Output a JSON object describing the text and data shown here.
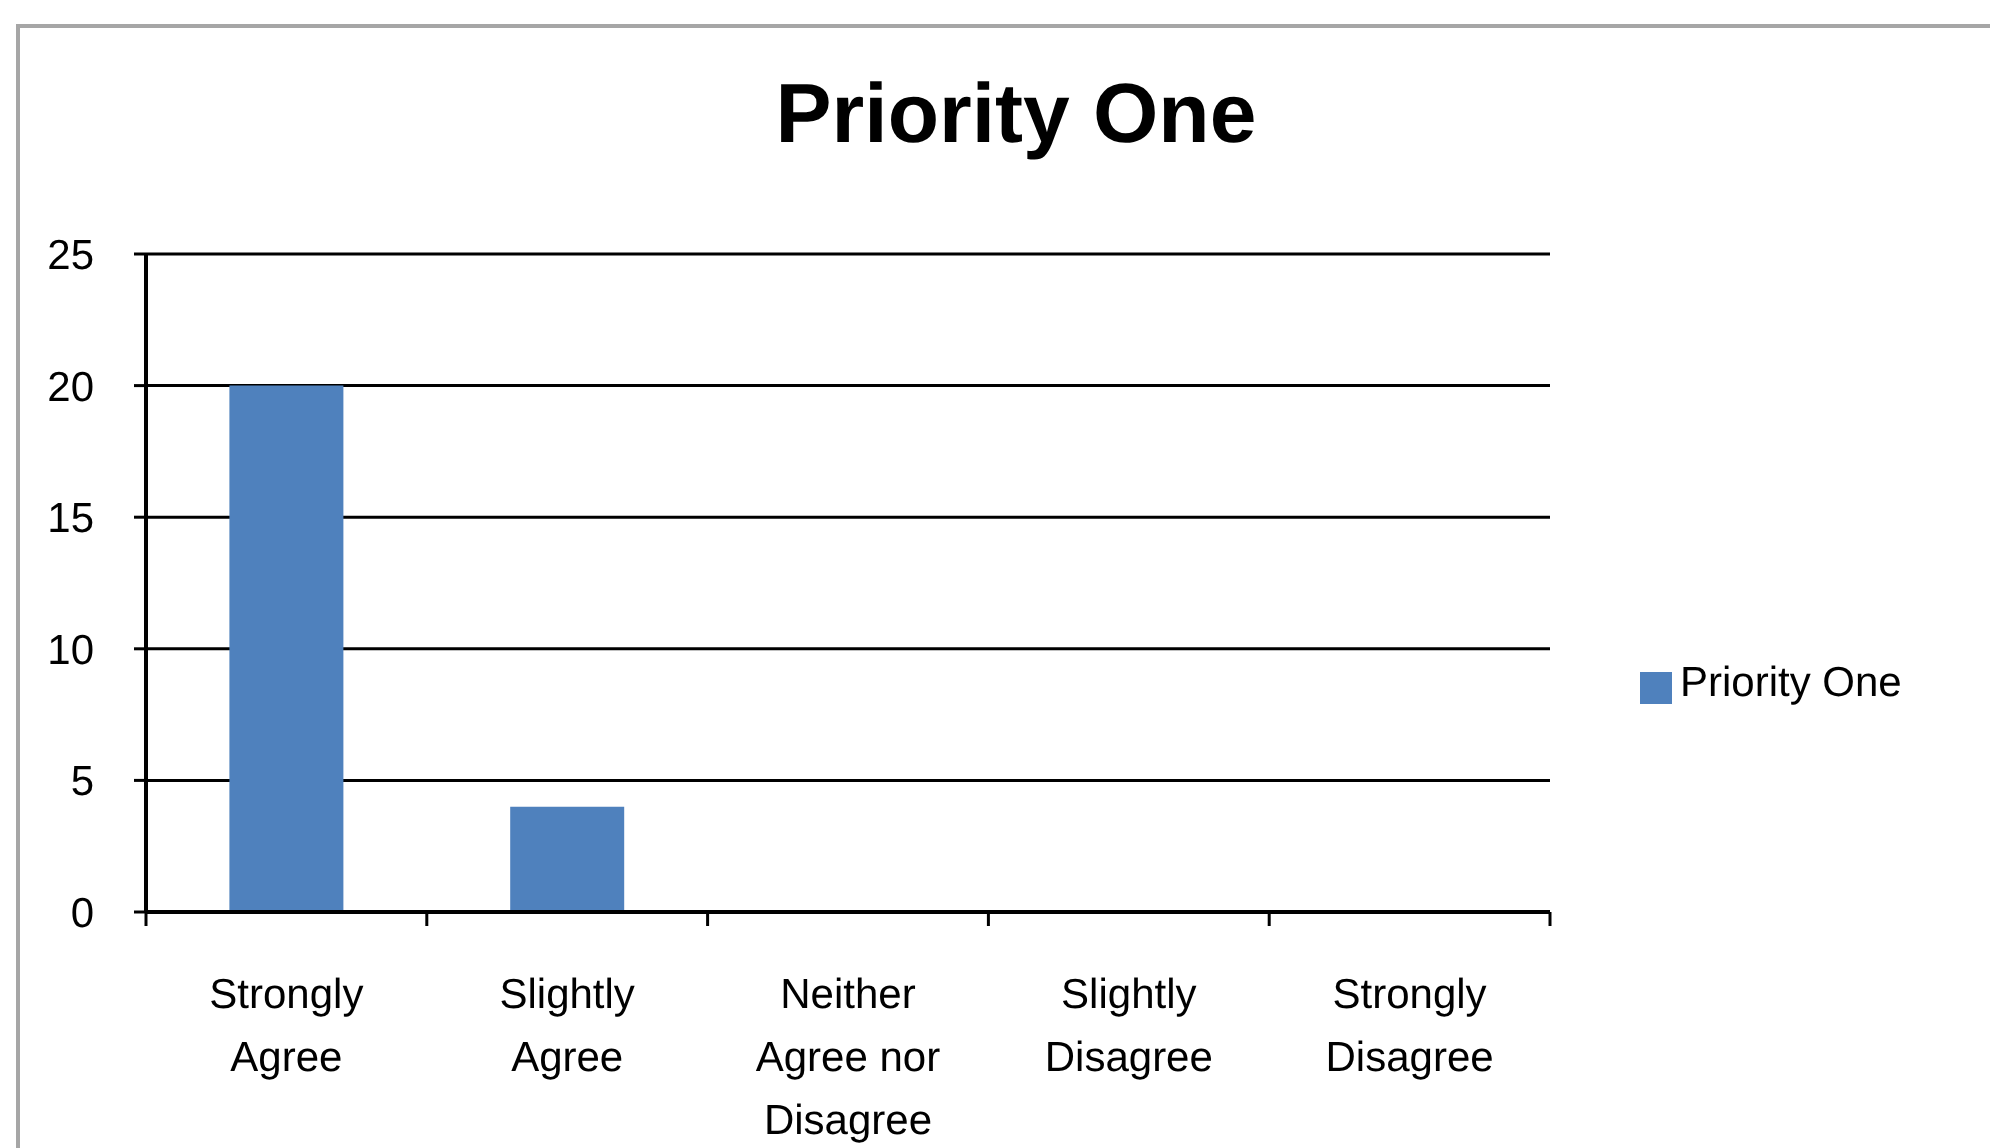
{
  "chart_data": {
    "type": "bar",
    "title": "Priority One",
    "categories": [
      "Strongly Agree",
      "Slightly Agree",
      "Neither Agree nor Disagree",
      "Slightly Disagree",
      "Strongly Disagree"
    ],
    "series": [
      {
        "name": "Priority One",
        "color": "#4f81bd",
        "values": [
          20,
          4,
          0,
          0,
          0
        ]
      }
    ],
    "ylim": [
      0,
      25
    ],
    "yticks": [
      0,
      5,
      10,
      15,
      20,
      25
    ],
    "grid": "y",
    "legend": "right"
  }
}
